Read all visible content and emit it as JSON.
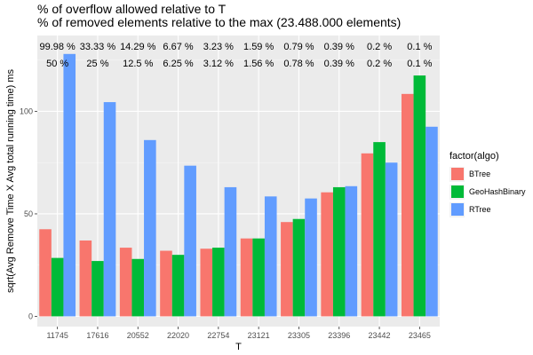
{
  "titles": {
    "line1": "% of overflow allowed relative to T",
    "line2": "% of removed elements relative to the max (23.488.000 elements)"
  },
  "chart_data": {
    "type": "bar",
    "xlabel": "T",
    "ylabel": "sqrt(Avg Remove Time X Avg total running time)  ms",
    "ylim": [
      -5,
      137
    ],
    "yticks": [
      0,
      50,
      100
    ],
    "categories": [
      "11745",
      "17616",
      "20552",
      "22020",
      "22754",
      "23121",
      "23305",
      "23396",
      "23442",
      "23465"
    ],
    "series": [
      {
        "name": "BTree",
        "color": "#F8766D",
        "values": [
          42.5,
          37,
          33.5,
          32,
          33,
          38,
          46,
          60.5,
          79.5,
          108.5
        ]
      },
      {
        "name": "GeoHashBinary",
        "color": "#00BA38",
        "values": [
          28.5,
          27,
          28,
          30,
          33.5,
          38,
          47.5,
          63,
          85,
          117.5
        ]
      },
      {
        "name": "RTree",
        "color": "#619CFF",
        "values": [
          128,
          104.5,
          86,
          73.5,
          63,
          58.5,
          57.5,
          63.5,
          75,
          92.5
        ]
      }
    ],
    "annotations_row1": [
      "99.98 %",
      "33.33 %",
      "14.29 %",
      "6.67 %",
      "3.23 %",
      "1.59 %",
      "0.79 %",
      "0.39 %",
      "0.2 %",
      "0.1 %"
    ],
    "annotations_row2": [
      "50 %",
      "25 %",
      "12.5 %",
      "6.25 %",
      "3.12 %",
      "1.56 %",
      "0.78 %",
      "0.39 %",
      "0.2 %",
      "0.1 %"
    ],
    "legend": {
      "title": "factor(algo)",
      "placement": "right"
    },
    "grid": true
  }
}
